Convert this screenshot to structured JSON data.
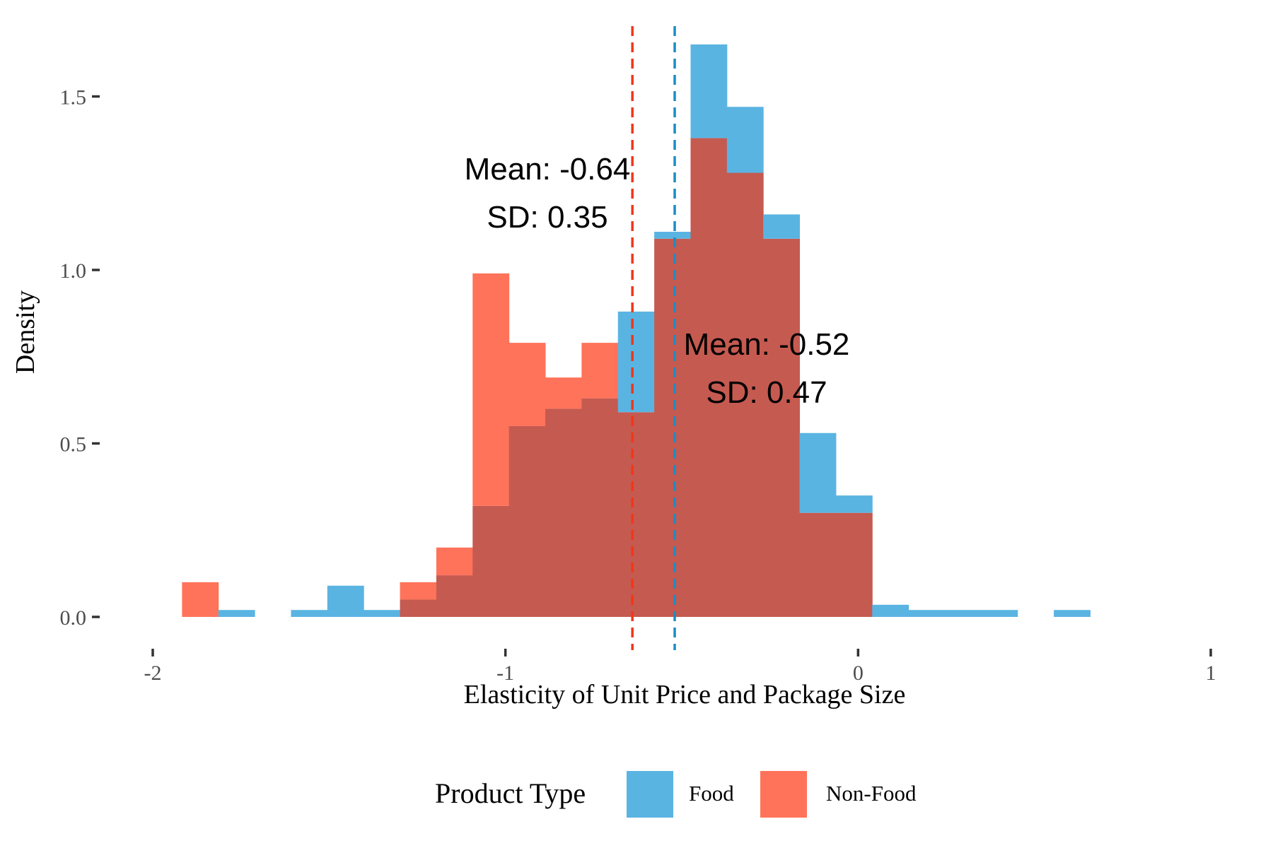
{
  "chart_data": {
    "type": "histogram",
    "xlabel": "Elasticity of Unit Price and Package Size",
    "ylabel": "Density",
    "xlim": [
      -2.05,
      1.05
    ],
    "ylim": [
      -0.08,
      1.75
    ],
    "x_ticks": [
      -2,
      -1,
      0,
      1
    ],
    "x_tick_labels": [
      "-2",
      "-1",
      "0",
      "1"
    ],
    "y_ticks": [
      0.0,
      0.5,
      1.0,
      1.5
    ],
    "y_tick_labels": [
      "0.0",
      "0.5",
      "1.0",
      "1.5"
    ],
    "bin_edges": [
      -1.917,
      -1.814,
      -1.711,
      -1.608,
      -1.505,
      -1.402,
      -1.299,
      -1.196,
      -1.093,
      -0.99,
      -0.887,
      -0.784,
      -0.681,
      -0.578,
      -0.475,
      -0.372,
      -0.269,
      -0.166,
      -0.063,
      0.04,
      0.143,
      0.246,
      0.349,
      0.452,
      0.555,
      0.658
    ],
    "grid": false,
    "legend": {
      "title": "Product Type",
      "position": "bottom",
      "entries": [
        {
          "label": "Food",
          "color": "#5ab4e2"
        },
        {
          "label": "Non-Food",
          "color": "#ff735a"
        }
      ]
    },
    "overlap_color": "#c55a50",
    "series": [
      {
        "name": "Food",
        "color": "#5ab4e2",
        "values": [
          0,
          0.02,
          0,
          0.02,
          0.09,
          0.02,
          0.05,
          0.12,
          0.32,
          0.55,
          0.6,
          0.63,
          0.88,
          1.11,
          1.65,
          1.47,
          1.16,
          0.53,
          0.35,
          0.035,
          0.02,
          0.02,
          0.02,
          0,
          0.02
        ],
        "mean_line": -0.52,
        "annotation": [
          "Mean: -0.52",
          "SD: 0.47"
        ]
      },
      {
        "name": "Non-Food",
        "color": "#ff735a",
        "values": [
          0.1,
          0,
          0,
          0,
          0,
          0,
          0.1,
          0.2,
          0.99,
          0.79,
          0.69,
          0.79,
          0.59,
          1.09,
          1.38,
          1.28,
          1.09,
          0.3,
          0.3,
          0,
          0,
          0,
          0,
          0,
          0
        ],
        "mean_line": -0.64,
        "annotation": [
          "Mean: -0.64",
          "SD: 0.35"
        ]
      }
    ]
  }
}
